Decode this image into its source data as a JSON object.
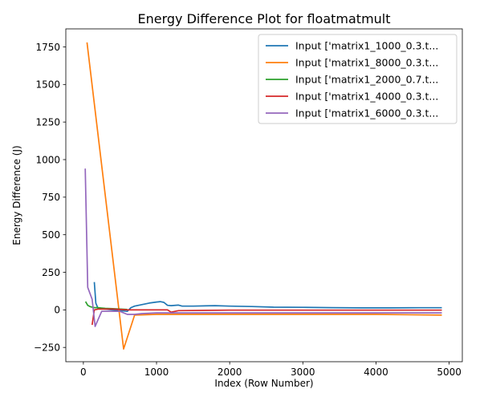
{
  "chart_data": {
    "type": "line",
    "title": "Energy Difference Plot for floatmatmult",
    "xlabel": "Index (Row Number)",
    "ylabel": "Energy Difference (J)",
    "xlim": [
      -240,
      5180
    ],
    "ylim": [
      -345,
      1870
    ],
    "xticks": [
      0,
      1000,
      2000,
      3000,
      4000,
      5000
    ],
    "xtick_labels": [
      "0",
      "1000",
      "2000",
      "3000",
      "4000",
      "5000"
    ],
    "yticks": [
      -250,
      0,
      250,
      500,
      750,
      1000,
      1250,
      1500,
      1750
    ],
    "ytick_labels": [
      "−250",
      "0",
      "250",
      "500",
      "750",
      "1000",
      "1250",
      "1500",
      "1750"
    ],
    "grid": false,
    "legend_position": "top-right",
    "series": [
      {
        "name": "Input ['matrix1_1000_0.3.t...",
        "color": "#1f77b4",
        "x": [
          150,
          170,
          200,
          300,
          400,
          500,
          600,
          650,
          700,
          800,
          900,
          1000,
          1050,
          1100,
          1150,
          1200,
          1300,
          1350,
          1500,
          1800,
          2000,
          2300,
          2600,
          3000,
          3400,
          3800,
          4200,
          4600,
          4900
        ],
        "y": [
          185,
          45,
          10,
          5,
          0,
          -5,
          -10,
          15,
          25,
          35,
          45,
          52,
          55,
          50,
          30,
          28,
          32,
          25,
          25,
          28,
          25,
          22,
          18,
          17,
          15,
          13,
          13,
          14,
          14
        ]
      },
      {
        "name": "Input ['matrix1_8000_0.3.t...",
        "color": "#ff7f0e",
        "x": [
          50,
          550,
          700,
          1000,
          2000,
          3000,
          4000,
          4900
        ],
        "y": [
          1780,
          -260,
          -35,
          -30,
          -30,
          -30,
          -30,
          -35
        ]
      },
      {
        "name": "Input ['matrix1_2000_0.7.t...",
        "color": "#2ca02c",
        "x": [
          30,
          60,
          100,
          150,
          200,
          250,
          300,
          400,
          500,
          600
        ],
        "y": [
          55,
          30,
          20,
          15,
          15,
          12,
          10,
          8,
          5,
          3
        ]
      },
      {
        "name": "Input ['matrix1_4000_0.3.t...",
        "color": "#d62728",
        "x": [
          120,
          150,
          200,
          400,
          600,
          1000,
          1150,
          1200,
          1300,
          2000,
          3000,
          4000,
          4900
        ],
        "y": [
          -100,
          0,
          5,
          5,
          0,
          0,
          0,
          -15,
          -5,
          -2,
          -2,
          -2,
          -2
        ]
      },
      {
        "name": "Input ['matrix1_6000_0.3.t...",
        "color": "#9467bd",
        "x": [
          25,
          60,
          120,
          160,
          250,
          500,
          600,
          700,
          800,
          1000,
          2000,
          3000,
          4000,
          4900
        ],
        "y": [
          940,
          150,
          70,
          -110,
          -10,
          -10,
          -30,
          -30,
          -25,
          -20,
          -20,
          -20,
          -20,
          -20
        ]
      }
    ]
  }
}
